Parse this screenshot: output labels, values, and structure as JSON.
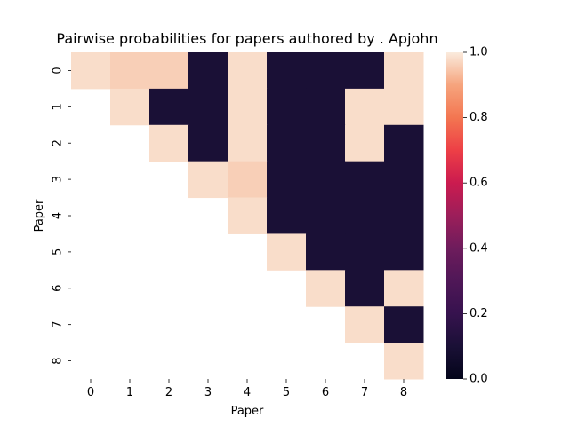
{
  "chart_data": {
    "type": "heatmap",
    "title": "Pairwise probabilities for papers authored by . Apjohn",
    "xlabel": "Paper",
    "ylabel": "Paper",
    "x_categories": [
      "0",
      "1",
      "2",
      "3",
      "4",
      "5",
      "6",
      "7",
      "8"
    ],
    "y_categories": [
      "0",
      "1",
      "2",
      "3",
      "4",
      "5",
      "6",
      "7",
      "8"
    ],
    "matrix": [
      [
        0.98,
        0.96,
        0.96,
        0.1,
        0.98,
        0.1,
        0.1,
        0.1,
        0.98
      ],
      [
        null,
        0.98,
        0.1,
        0.1,
        0.98,
        0.1,
        0.1,
        0.98,
        0.98
      ],
      [
        null,
        null,
        0.98,
        0.1,
        0.98,
        0.1,
        0.1,
        0.98,
        0.1
      ],
      [
        null,
        null,
        null,
        0.98,
        0.96,
        0.1,
        0.1,
        0.1,
        0.1
      ],
      [
        null,
        null,
        null,
        null,
        0.98,
        0.1,
        0.1,
        0.1,
        0.1
      ],
      [
        null,
        null,
        null,
        null,
        null,
        0.98,
        0.1,
        0.1,
        0.1
      ],
      [
        null,
        null,
        null,
        null,
        null,
        null,
        0.98,
        0.1,
        0.98
      ],
      [
        null,
        null,
        null,
        null,
        null,
        null,
        null,
        0.98,
        0.1
      ],
      [
        null,
        null,
        null,
        null,
        null,
        null,
        null,
        null,
        0.98
      ]
    ],
    "colorbar": {
      "range": [
        0.0,
        1.0
      ],
      "ticks": [
        "0.0",
        "0.2",
        "0.4",
        "0.6",
        "0.8",
        "1.0"
      ],
      "colormap": "rocket"
    },
    "grid": false
  }
}
